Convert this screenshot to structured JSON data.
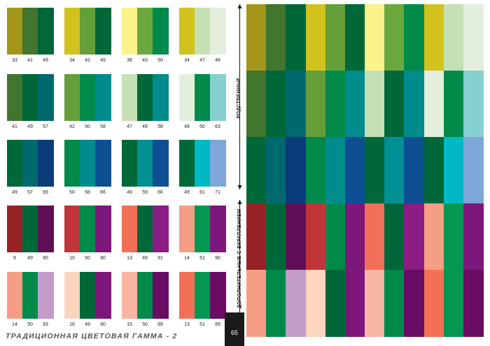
{
  "palette": {
    "9": "#952326",
    "10": "#c0353a",
    "13": "#f37058",
    "14": "#f59e85",
    "15": "#f8b5a2",
    "16": "#fcd5c1",
    "33": "#a3961a",
    "34": "#d1c21d",
    "38": "#fbf28a",
    "41": "#42752e",
    "42": "#649f39",
    "43": "#6ba83d",
    "47": "#c5e0b5",
    "48": "#e3efdc",
    "49": "#006838",
    "50": "#008a4a",
    "51": "#039751",
    "57": "#00696d",
    "58": "#008b8c",
    "59": "#009094",
    "61": "#00b9c4",
    "63": "#86d1d0",
    "65": "#0a3c7a",
    "66": "#0e4e93",
    "71": "#7ea6d8",
    "80": "#600f56",
    "89": "#6a0c64",
    "90": "#7e177b",
    "91": "#8b1d85",
    "93": "#c29bc9"
  },
  "swatches": [
    [
      34,
      42,
      49
    ],
    [
      38,
      43,
      50
    ],
    [
      34,
      47,
      48
    ],
    [
      41,
      49,
      57
    ],
    [
      42,
      50,
      58
    ],
    [
      47,
      49,
      58
    ],
    [
      48,
      50,
      63
    ],
    [
      49,
      57,
      65
    ],
    [
      50,
      58,
      66
    ],
    [
      49,
      59,
      66
    ],
    [
      49,
      61,
      71
    ],
    [
      9,
      49,
      80
    ],
    [
      10,
      50,
      90
    ],
    [
      13,
      49,
      91
    ],
    [
      14,
      51,
      90
    ],
    [
      14,
      50,
      93
    ],
    [
      16,
      49,
      90
    ],
    [
      15,
      50,
      89
    ],
    [
      13,
      51,
      89
    ]
  ],
  "first_swatch": [
    33,
    41,
    49
  ],
  "big_grid": [
    [
      33,
      41,
      49,
      34,
      42,
      49,
      38,
      43,
      50,
      34,
      47,
      48
    ],
    [
      41,
      49,
      57,
      42,
      50,
      58,
      47,
      49,
      58,
      48,
      50,
      63
    ],
    [
      49,
      57,
      65,
      50,
      58,
      66,
      49,
      59,
      66,
      49,
      61,
      71
    ],
    [
      9,
      49,
      80,
      10,
      50,
      90,
      13,
      49,
      91,
      14,
      51,
      90
    ],
    [
      14,
      50,
      93,
      16,
      49,
      90,
      15,
      50,
      89,
      13,
      51,
      89
    ]
  ],
  "labels": {
    "related": "РОДСТВЕННЫЕ",
    "complementary": "ДОПОЛНИТЕЛЬНЫЕ С ВКРАПЛЕНИЕМ"
  },
  "footer": {
    "title": "ТРАДИЦИОННАЯ ЦВЕТОВАЯ ГАММА - 2",
    "page_number": "65"
  }
}
